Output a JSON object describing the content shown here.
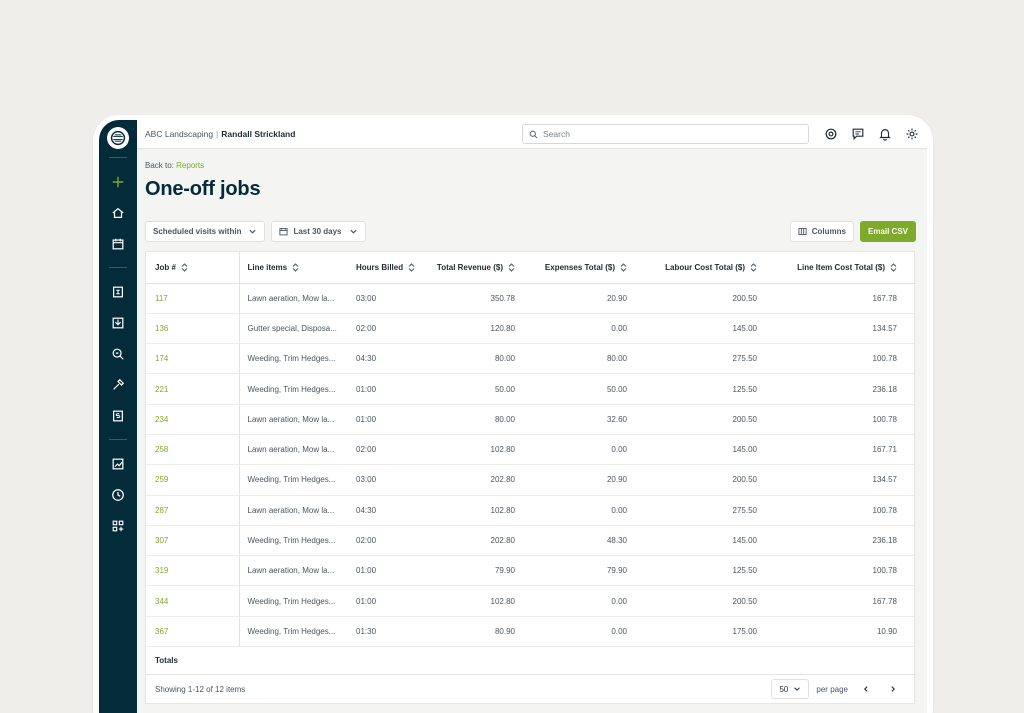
{
  "topbar": {
    "company": "ABC Landscaping",
    "separator": "|",
    "user": "Randall Strickland",
    "search_placeholder": "Search"
  },
  "sidebar": {
    "icons": [
      "create-plus-icon",
      "home-icon",
      "calendar-icon",
      "clients-icon",
      "requests-icon",
      "quotes-icon",
      "jobs-icon",
      "invoices-icon",
      "reports-icon",
      "timesheets-icon",
      "apps-icon"
    ]
  },
  "page": {
    "back_prefix": "Back to:",
    "back_link": "Reports",
    "title": "One-off jobs"
  },
  "filters": {
    "visits": "Scheduled visits within",
    "date_range": "Last 30 days"
  },
  "actions": {
    "columns": "Columns",
    "email_csv": "Email CSV"
  },
  "table": {
    "headers": [
      "Job #",
      "Line items",
      "Hours Billed",
      "Total Revenue ($)",
      "Expenses Total ($)",
      "Labour Cost Total ($)",
      "Line Item Cost Total ($)"
    ],
    "rows": [
      {
        "job": "117",
        "line": "Lawn aeration, Mow la...",
        "hours": "03:00",
        "revenue": "350.78",
        "expenses": "20.90",
        "labour": "200.50",
        "line_cost": "167.78"
      },
      {
        "job": "136",
        "line": "Gutter special, Disposa...",
        "hours": "02:00",
        "revenue": "120.80",
        "expenses": "0.00",
        "labour": "145.00",
        "line_cost": "134.57"
      },
      {
        "job": "174",
        "line": "Weeding, Trim Hedges...",
        "hours": "04:30",
        "revenue": "80.00",
        "expenses": "80.00",
        "labour": "275.50",
        "line_cost": "100.78"
      },
      {
        "job": "221",
        "line": "Weeding, Trim Hedges...",
        "hours": "01:00",
        "revenue": "50.00",
        "expenses": "50.00",
        "labour": "125.50",
        "line_cost": "236.18"
      },
      {
        "job": "234",
        "line": "Lawn aeration, Mow la...",
        "hours": "01:00",
        "revenue": "80.00",
        "expenses": "32.60",
        "labour": "200.50",
        "line_cost": "100.78"
      },
      {
        "job": "258",
        "line": "Lawn aeration, Mow la...",
        "hours": "02:00",
        "revenue": "102.80",
        "expenses": "0.00",
        "labour": "145.00",
        "line_cost": "167.71"
      },
      {
        "job": "259",
        "line": "Weeding, Trim Hedges...",
        "hours": "03:00",
        "revenue": "202.80",
        "expenses": "20.90",
        "labour": "200.50",
        "line_cost": "134.57"
      },
      {
        "job": "287",
        "line": "Lawn aeration, Mow la...",
        "hours": "04:30",
        "revenue": "102.80",
        "expenses": "0.00",
        "labour": "275.50",
        "line_cost": "100.78"
      },
      {
        "job": "307",
        "line": "Weeding, Trim Hedges...",
        "hours": "02:00",
        "revenue": "202.80",
        "expenses": "48.30",
        "labour": "145.00",
        "line_cost": "236.18"
      },
      {
        "job": "319",
        "line": "Lawn aeration, Mow la...",
        "hours": "01:00",
        "revenue": "79.90",
        "expenses": "79.90",
        "labour": "125.50",
        "line_cost": "100.78"
      },
      {
        "job": "344",
        "line": "Weeding, Trim Hedges...",
        "hours": "01:00",
        "revenue": "102.80",
        "expenses": "0.00",
        "labour": "200.50",
        "line_cost": "167.78"
      },
      {
        "job": "367",
        "line": "Weeding, Trim Hedges...",
        "hours": "01:30",
        "revenue": "80.90",
        "expenses": "0.00",
        "labour": "175.00",
        "line_cost": "10.90"
      }
    ],
    "totals_label": "Totals"
  },
  "footer": {
    "showing": "Showing 1-12 of 12 items",
    "per_page_value": "50",
    "per_page_label": "per page"
  },
  "colors": {
    "sidebar": "#032b3a",
    "accent_green": "#7daa2a",
    "title": "#032b3a"
  }
}
